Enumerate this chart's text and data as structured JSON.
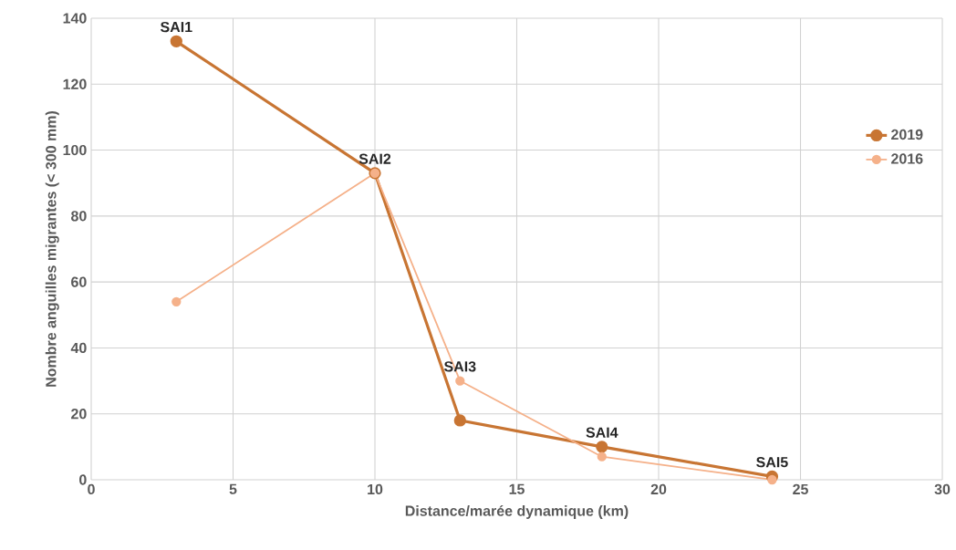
{
  "chart_data": {
    "type": "line",
    "xlabel": "Distance/marée dynamique (km)",
    "ylabel": "Nombre anguilles migrantes (< 300 mm)",
    "series": [
      {
        "name": "2019",
        "color": "#c87533",
        "x": [
          3,
          10,
          13,
          18,
          24
        ],
        "values": [
          133,
          93,
          18,
          10,
          1
        ]
      },
      {
        "name": "2016",
        "color": "#f5b18a",
        "x": [
          3,
          10,
          13,
          18,
          24
        ],
        "values": [
          54,
          93,
          30,
          7,
          0
        ]
      }
    ],
    "annotations": [
      {
        "text": "SAI1",
        "x": 3,
        "y": 133
      },
      {
        "text": "SAI2",
        "x": 10,
        "y": 93
      },
      {
        "text": "SAI3",
        "x": 13,
        "y": 30
      },
      {
        "text": "SAI4",
        "x": 18,
        "y": 10
      },
      {
        "text": "SAI5",
        "x": 24,
        "y": 1
      }
    ],
    "xlim": [
      0,
      30
    ],
    "ylim": [
      0,
      140
    ],
    "xticks": [
      0,
      5,
      10,
      15,
      20,
      25,
      30
    ],
    "yticks": [
      0,
      20,
      40,
      60,
      80,
      100,
      120,
      140
    ],
    "grid": true,
    "legend": "right",
    "marker": "circle",
    "line_style": "solid"
  }
}
